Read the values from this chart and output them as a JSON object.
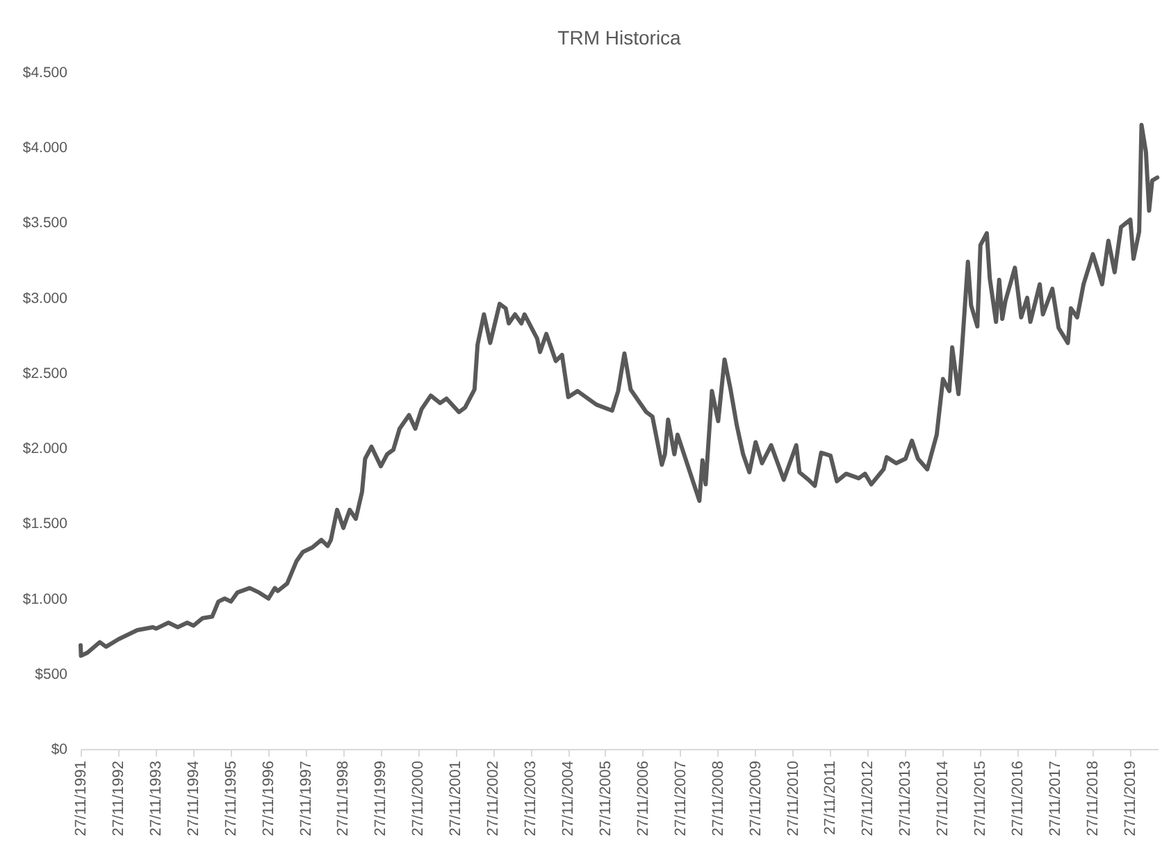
{
  "chart_data": {
    "type": "line",
    "title": "TRM Historica",
    "x": [
      "1991-11-27",
      "1991-12",
      "1992-02",
      "1992-06",
      "1992-08",
      "1992-12",
      "1993-06",
      "1993-11",
      "1993-12",
      "1994-04",
      "1994-07",
      "1994-10",
      "1994-12",
      "1995-03",
      "1995-06",
      "1995-08",
      "1995-10",
      "1995-12",
      "1996-02",
      "1996-06",
      "1996-09",
      "1996-12",
      "1997-02",
      "1997-03",
      "1997-06",
      "1997-09",
      "1997-11",
      "1998-02",
      "1998-05",
      "1998-07",
      "1998-08",
      "1998-10",
      "1998-12",
      "1999-02",
      "1999-04",
      "1999-06",
      "1999-07",
      "1999-09",
      "1999-12",
      "2000-02",
      "2000-04",
      "2000-06",
      "2000-09",
      "2000-11",
      "2001-01",
      "2001-04",
      "2001-07",
      "2001-09",
      "2002-01",
      "2002-03",
      "2002-06",
      "2002-07",
      "2002-09",
      "2002-11",
      "2003-02",
      "2003-04",
      "2003-05",
      "2003-07",
      "2003-09",
      "2003-10",
      "2004-02",
      "2004-03",
      "2004-05",
      "2004-08",
      "2004-10",
      "2004-12",
      "2005-03",
      "2005-09",
      "2006-02",
      "2006-04",
      "2006-06",
      "2006-08",
      "2007-01",
      "2007-03",
      "2007-06",
      "2007-07",
      "2007-08",
      "2007-10",
      "2007-11",
      "2008-03",
      "2008-06",
      "2008-07",
      "2008-08",
      "2008-10",
      "2008-12",
      "2009-02",
      "2009-04",
      "2009-06",
      "2009-08",
      "2009-10",
      "2009-12",
      "2010-02",
      "2010-05",
      "2010-09",
      "2011-01",
      "2011-02",
      "2011-05",
      "2011-07",
      "2011-09",
      "2011-12",
      "2012-02",
      "2012-05",
      "2012-09",
      "2012-11",
      "2013-01",
      "2013-05",
      "2013-06",
      "2013-09",
      "2013-12",
      "2014-02",
      "2014-04",
      "2014-07",
      "2014-10",
      "2014-12",
      "2015-02",
      "2015-03",
      "2015-05",
      "2015-06",
      "2015-08",
      "2015-09",
      "2015-11",
      "2015-12",
      "2016-02",
      "2016-03",
      "2016-05",
      "2016-06",
      "2016-07",
      "2016-08",
      "2016-11",
      "2017-01",
      "2017-03",
      "2017-04",
      "2017-07",
      "2017-08",
      "2017-11",
      "2018-01",
      "2018-04",
      "2018-05",
      "2018-07",
      "2018-09",
      "2018-12",
      "2019-03",
      "2019-05",
      "2019-07",
      "2019-09",
      "2019-12",
      "2020-01",
      "2020-02-25",
      "2020-03-19",
      "2020-05",
      "2020-06",
      "2020-07",
      "2020-08-20"
    ],
    "series": [
      {
        "color": "#595959",
        "values": [
          690,
          620,
          640,
          710,
          680,
          730,
          790,
          810,
          800,
          840,
          810,
          840,
          820,
          870,
          880,
          980,
          1000,
          980,
          1040,
          1070,
          1040,
          1000,
          1070,
          1050,
          1100,
          1250,
          1310,
          1340,
          1390,
          1350,
          1390,
          1590,
          1470,
          1590,
          1530,
          1710,
          1930,
          2010,
          1880,
          1960,
          1990,
          2130,
          2220,
          2130,
          2260,
          2350,
          2300,
          2330,
          2240,
          2270,
          2390,
          2690,
          2890,
          2700,
          2960,
          2930,
          2830,
          2890,
          2830,
          2890,
          2730,
          2640,
          2760,
          2580,
          2620,
          2340,
          2380,
          2290,
          2250,
          2380,
          2630,
          2390,
          2240,
          2210,
          1890,
          1960,
          2190,
          1960,
          2090,
          1840,
          1650,
          1920,
          1760,
          2380,
          2180,
          2590,
          2390,
          2150,
          1960,
          1840,
          2040,
          1900,
          2020,
          1790,
          2020,
          1840,
          1790,
          1750,
          1970,
          1950,
          1780,
          1830,
          1800,
          1830,
          1760,
          1860,
          1940,
          1900,
          1930,
          2050,
          1930,
          1860,
          2090,
          2460,
          2380,
          2670,
          2360,
          2630,
          3240,
          2950,
          2810,
          3350,
          3430,
          3130,
          2840,
          3120,
          2860,
          2980,
          3200,
          2870,
          3000,
          2840,
          3090,
          2890,
          3060,
          2800,
          2700,
          2930,
          2870,
          3090,
          3290,
          3090,
          3380,
          3170,
          3470,
          3520,
          3260,
          3440,
          4150,
          3970,
          3580,
          3780,
          3800
        ]
      }
    ],
    "xlim": [
      "1991-11-27",
      "2020-08-25"
    ],
    "xticks": [
      {
        "value": "1991-11-27",
        "label": "27/11/1991"
      },
      {
        "value": "1992-11-27",
        "label": "27/11/1992"
      },
      {
        "value": "1993-11-27",
        "label": "27/11/1993"
      },
      {
        "value": "1994-11-27",
        "label": "27/11/1994"
      },
      {
        "value": "1995-11-27",
        "label": "27/11/1995"
      },
      {
        "value": "1996-11-27",
        "label": "27/11/1996"
      },
      {
        "value": "1997-11-27",
        "label": "27/11/1997"
      },
      {
        "value": "1998-11-27",
        "label": "27/11/1998"
      },
      {
        "value": "1999-11-27",
        "label": "27/11/1999"
      },
      {
        "value": "2000-11-27",
        "label": "27/11/2000"
      },
      {
        "value": "2001-11-27",
        "label": "27/11/2001"
      },
      {
        "value": "2002-11-27",
        "label": "27/11/2002"
      },
      {
        "value": "2003-11-27",
        "label": "27/11/2003"
      },
      {
        "value": "2004-11-27",
        "label": "27/11/2004"
      },
      {
        "value": "2005-11-27",
        "label": "27/11/2005"
      },
      {
        "value": "2006-11-27",
        "label": "27/11/2006"
      },
      {
        "value": "2007-11-27",
        "label": "27/11/2007"
      },
      {
        "value": "2008-11-27",
        "label": "27/11/2008"
      },
      {
        "value": "2009-11-27",
        "label": "27/11/2009"
      },
      {
        "value": "2010-11-27",
        "label": "27/11/2010"
      },
      {
        "value": "2011-11-27",
        "label": "27/11/2011"
      },
      {
        "value": "2012-11-27",
        "label": "27/11/2012"
      },
      {
        "value": "2013-11-27",
        "label": "27/11/2013"
      },
      {
        "value": "2014-11-27",
        "label": "27/11/2014"
      },
      {
        "value": "2015-11-27",
        "label": "27/11/2015"
      },
      {
        "value": "2016-11-27",
        "label": "27/11/2016"
      },
      {
        "value": "2017-11-27",
        "label": "27/11/2017"
      },
      {
        "value": "2018-11-27",
        "label": "27/11/2018"
      },
      {
        "value": "2019-11-27",
        "label": "27/11/2019"
      }
    ],
    "ylim": [
      0,
      4500
    ],
    "yticks": [
      {
        "value": 0,
        "label": "$0"
      },
      {
        "value": 500,
        "label": "$500"
      },
      {
        "value": 1000,
        "label": "$1.000"
      },
      {
        "value": 1500,
        "label": "$1.500"
      },
      {
        "value": 2000,
        "label": "$2.000"
      },
      {
        "value": 2500,
        "label": "$2.500"
      },
      {
        "value": 3000,
        "label": "$3.000"
      },
      {
        "value": 3500,
        "label": "$3.500"
      },
      {
        "value": 4000,
        "label": "$4.000"
      },
      {
        "value": 4500,
        "label": "$4.500"
      }
    ]
  }
}
